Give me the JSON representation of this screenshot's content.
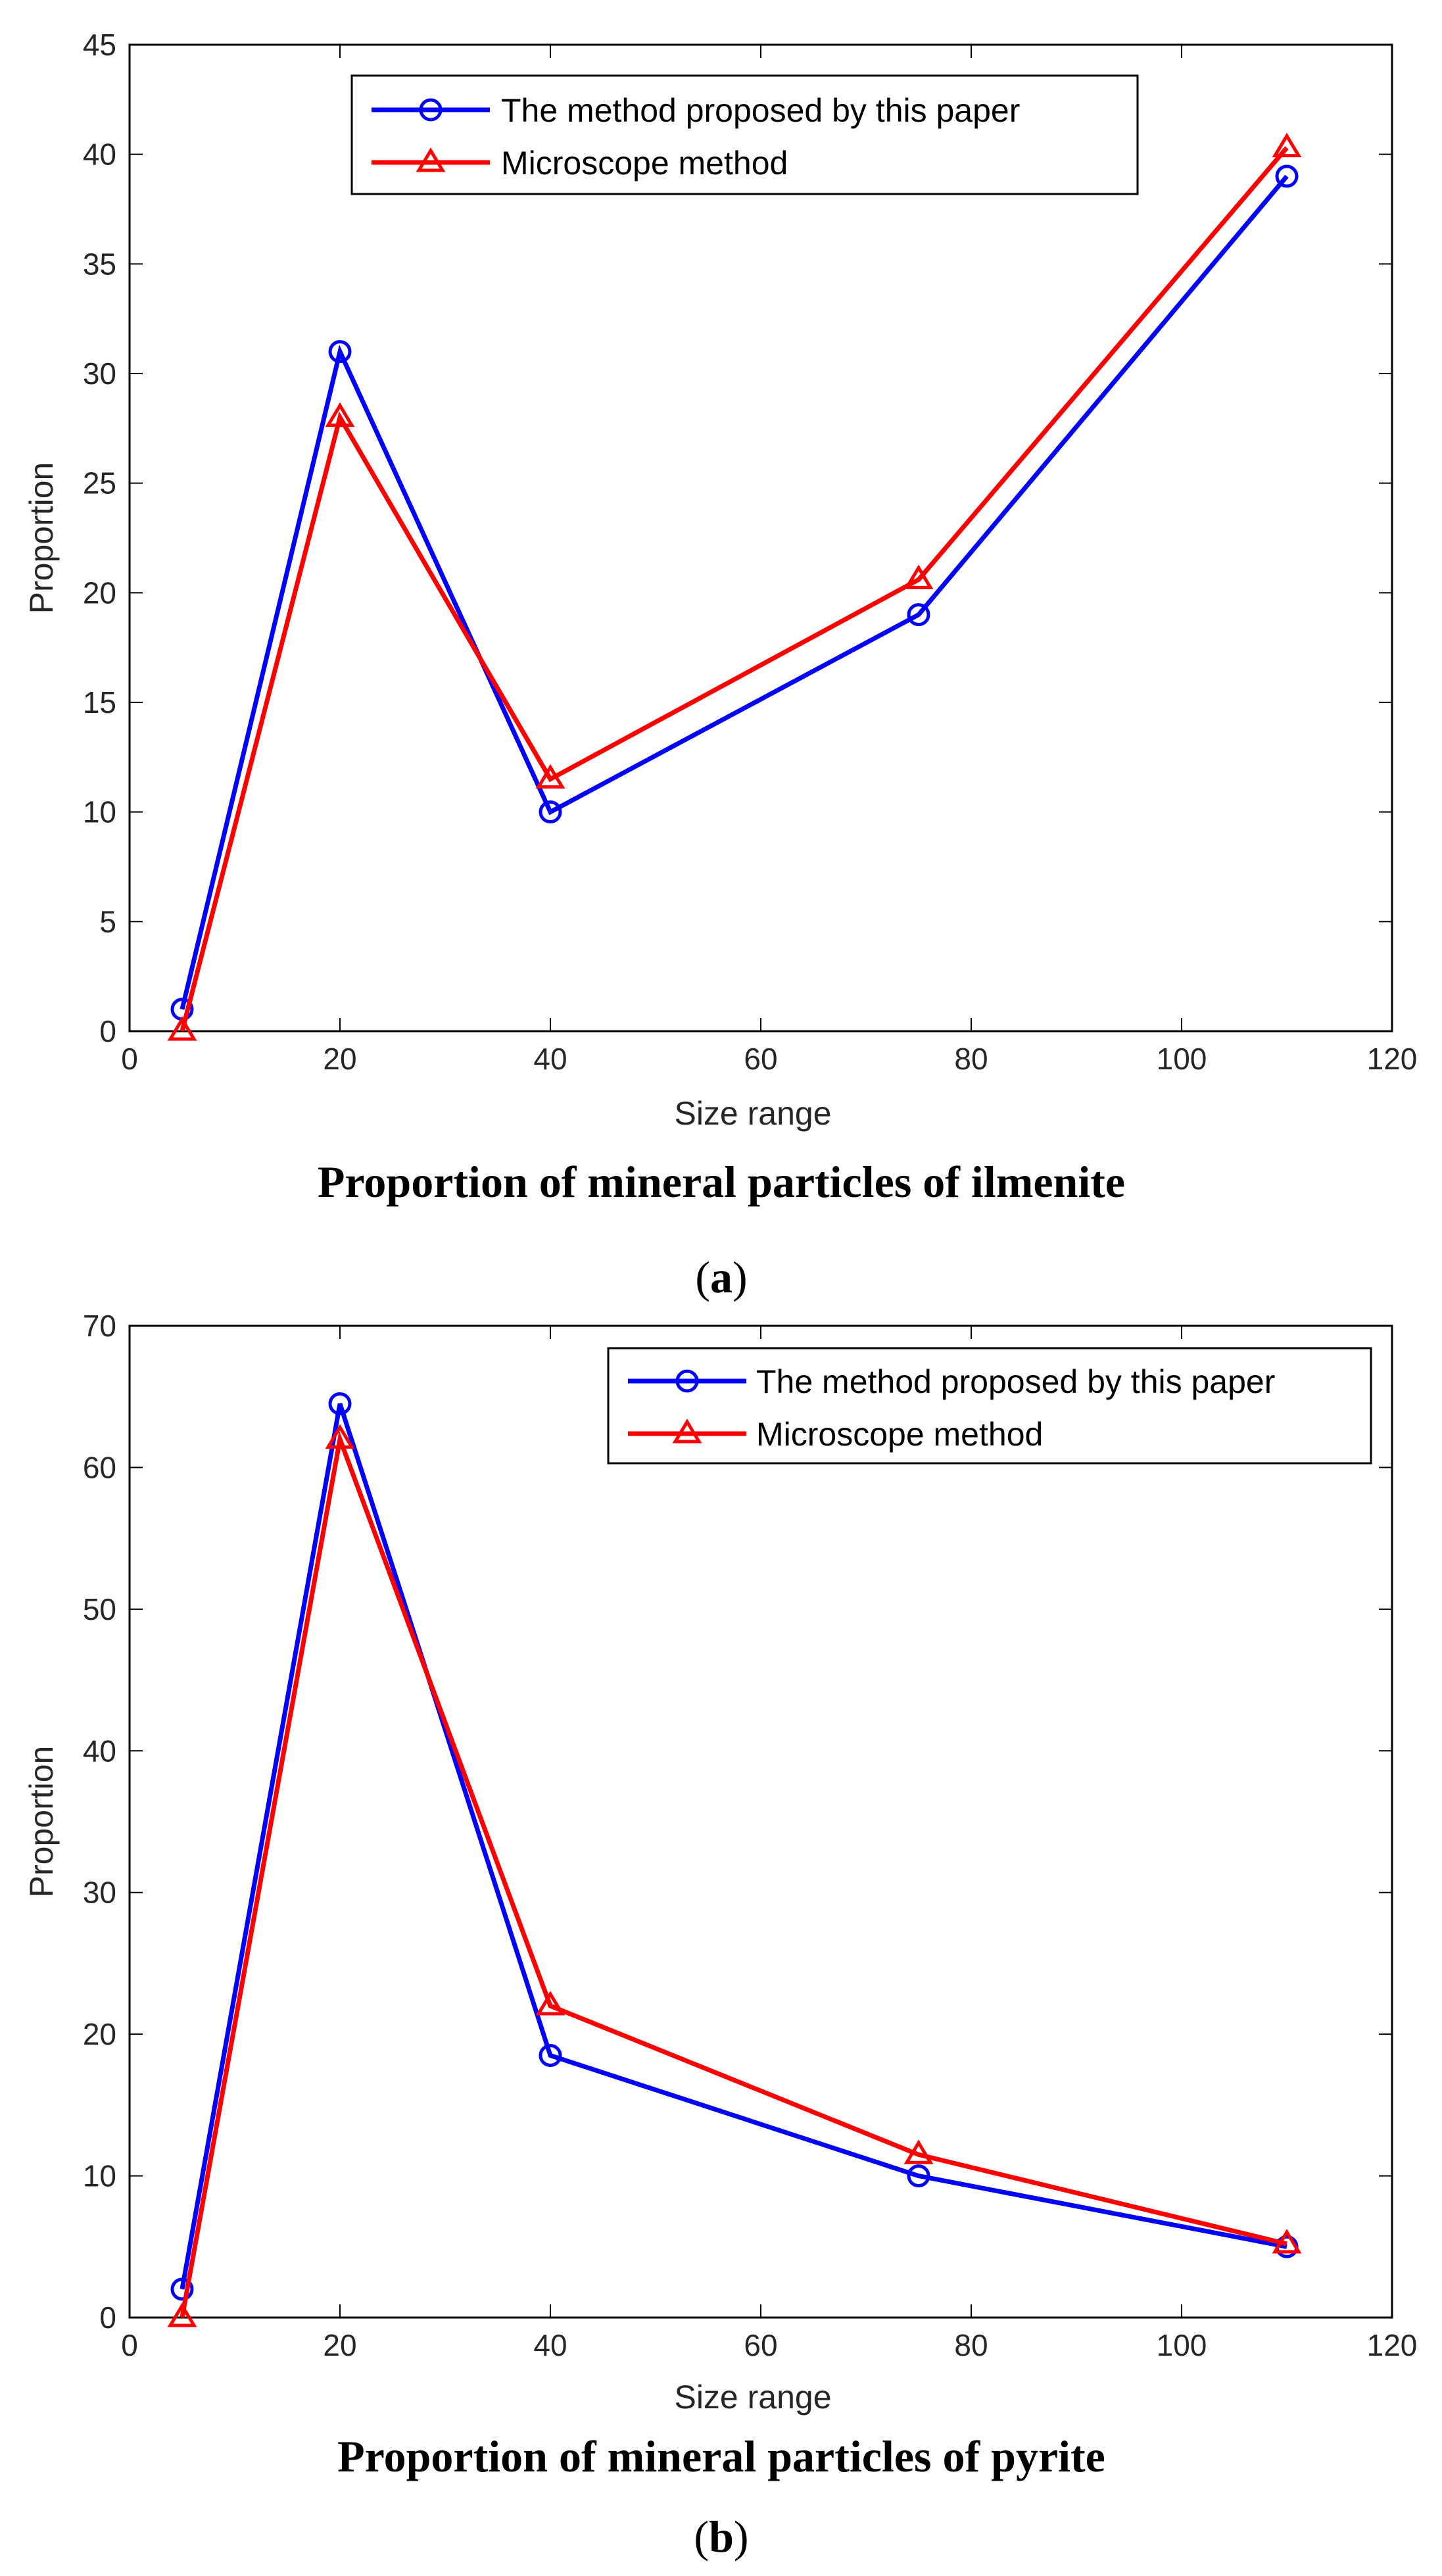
{
  "chart_data": [
    {
      "type": "line",
      "title": "Proportion of mineral particles of ilmenite",
      "caption_letter": "a",
      "xlabel": "Size range",
      "ylabel": "Proportion",
      "xlim": [
        0,
        120
      ],
      "ylim": [
        0,
        45
      ],
      "xticks": [
        0,
        20,
        40,
        60,
        80,
        100,
        120
      ],
      "yticks": [
        0,
        5,
        10,
        15,
        20,
        25,
        30,
        35,
        40,
        45
      ],
      "legend_position": "top-center",
      "series": [
        {
          "name": "The method proposed by this paper",
          "color": "#0000ff",
          "marker": "circle",
          "x": [
            5,
            20,
            40,
            75,
            110
          ],
          "values": [
            1,
            31,
            10,
            19,
            39
          ]
        },
        {
          "name": "Microscope method",
          "color": "#ff0000",
          "marker": "triangle",
          "x": [
            5,
            20,
            40,
            75,
            110
          ],
          "values": [
            0,
            28,
            11.5,
            20.6,
            40.3
          ]
        }
      ]
    },
    {
      "type": "line",
      "title": "Proportion of mineral particles of pyrite",
      "caption_letter": "b",
      "xlabel": "Size range",
      "ylabel": "Proportion",
      "xlim": [
        0,
        120
      ],
      "ylim": [
        0,
        70
      ],
      "xticks": [
        0,
        20,
        40,
        60,
        80,
        100,
        120
      ],
      "yticks": [
        0,
        10,
        20,
        30,
        40,
        50,
        60,
        70
      ],
      "legend_position": "top-right",
      "series": [
        {
          "name": "The method proposed by this paper",
          "color": "#0000ff",
          "marker": "circle",
          "x": [
            5,
            20,
            40,
            75,
            110
          ],
          "values": [
            2,
            64.5,
            18.5,
            10,
            5
          ]
        },
        {
          "name": "Microscope method",
          "color": "#ff0000",
          "marker": "triangle",
          "x": [
            5,
            20,
            40,
            75,
            110
          ],
          "values": [
            0,
            62,
            22,
            11.5,
            5.2
          ]
        }
      ]
    }
  ]
}
